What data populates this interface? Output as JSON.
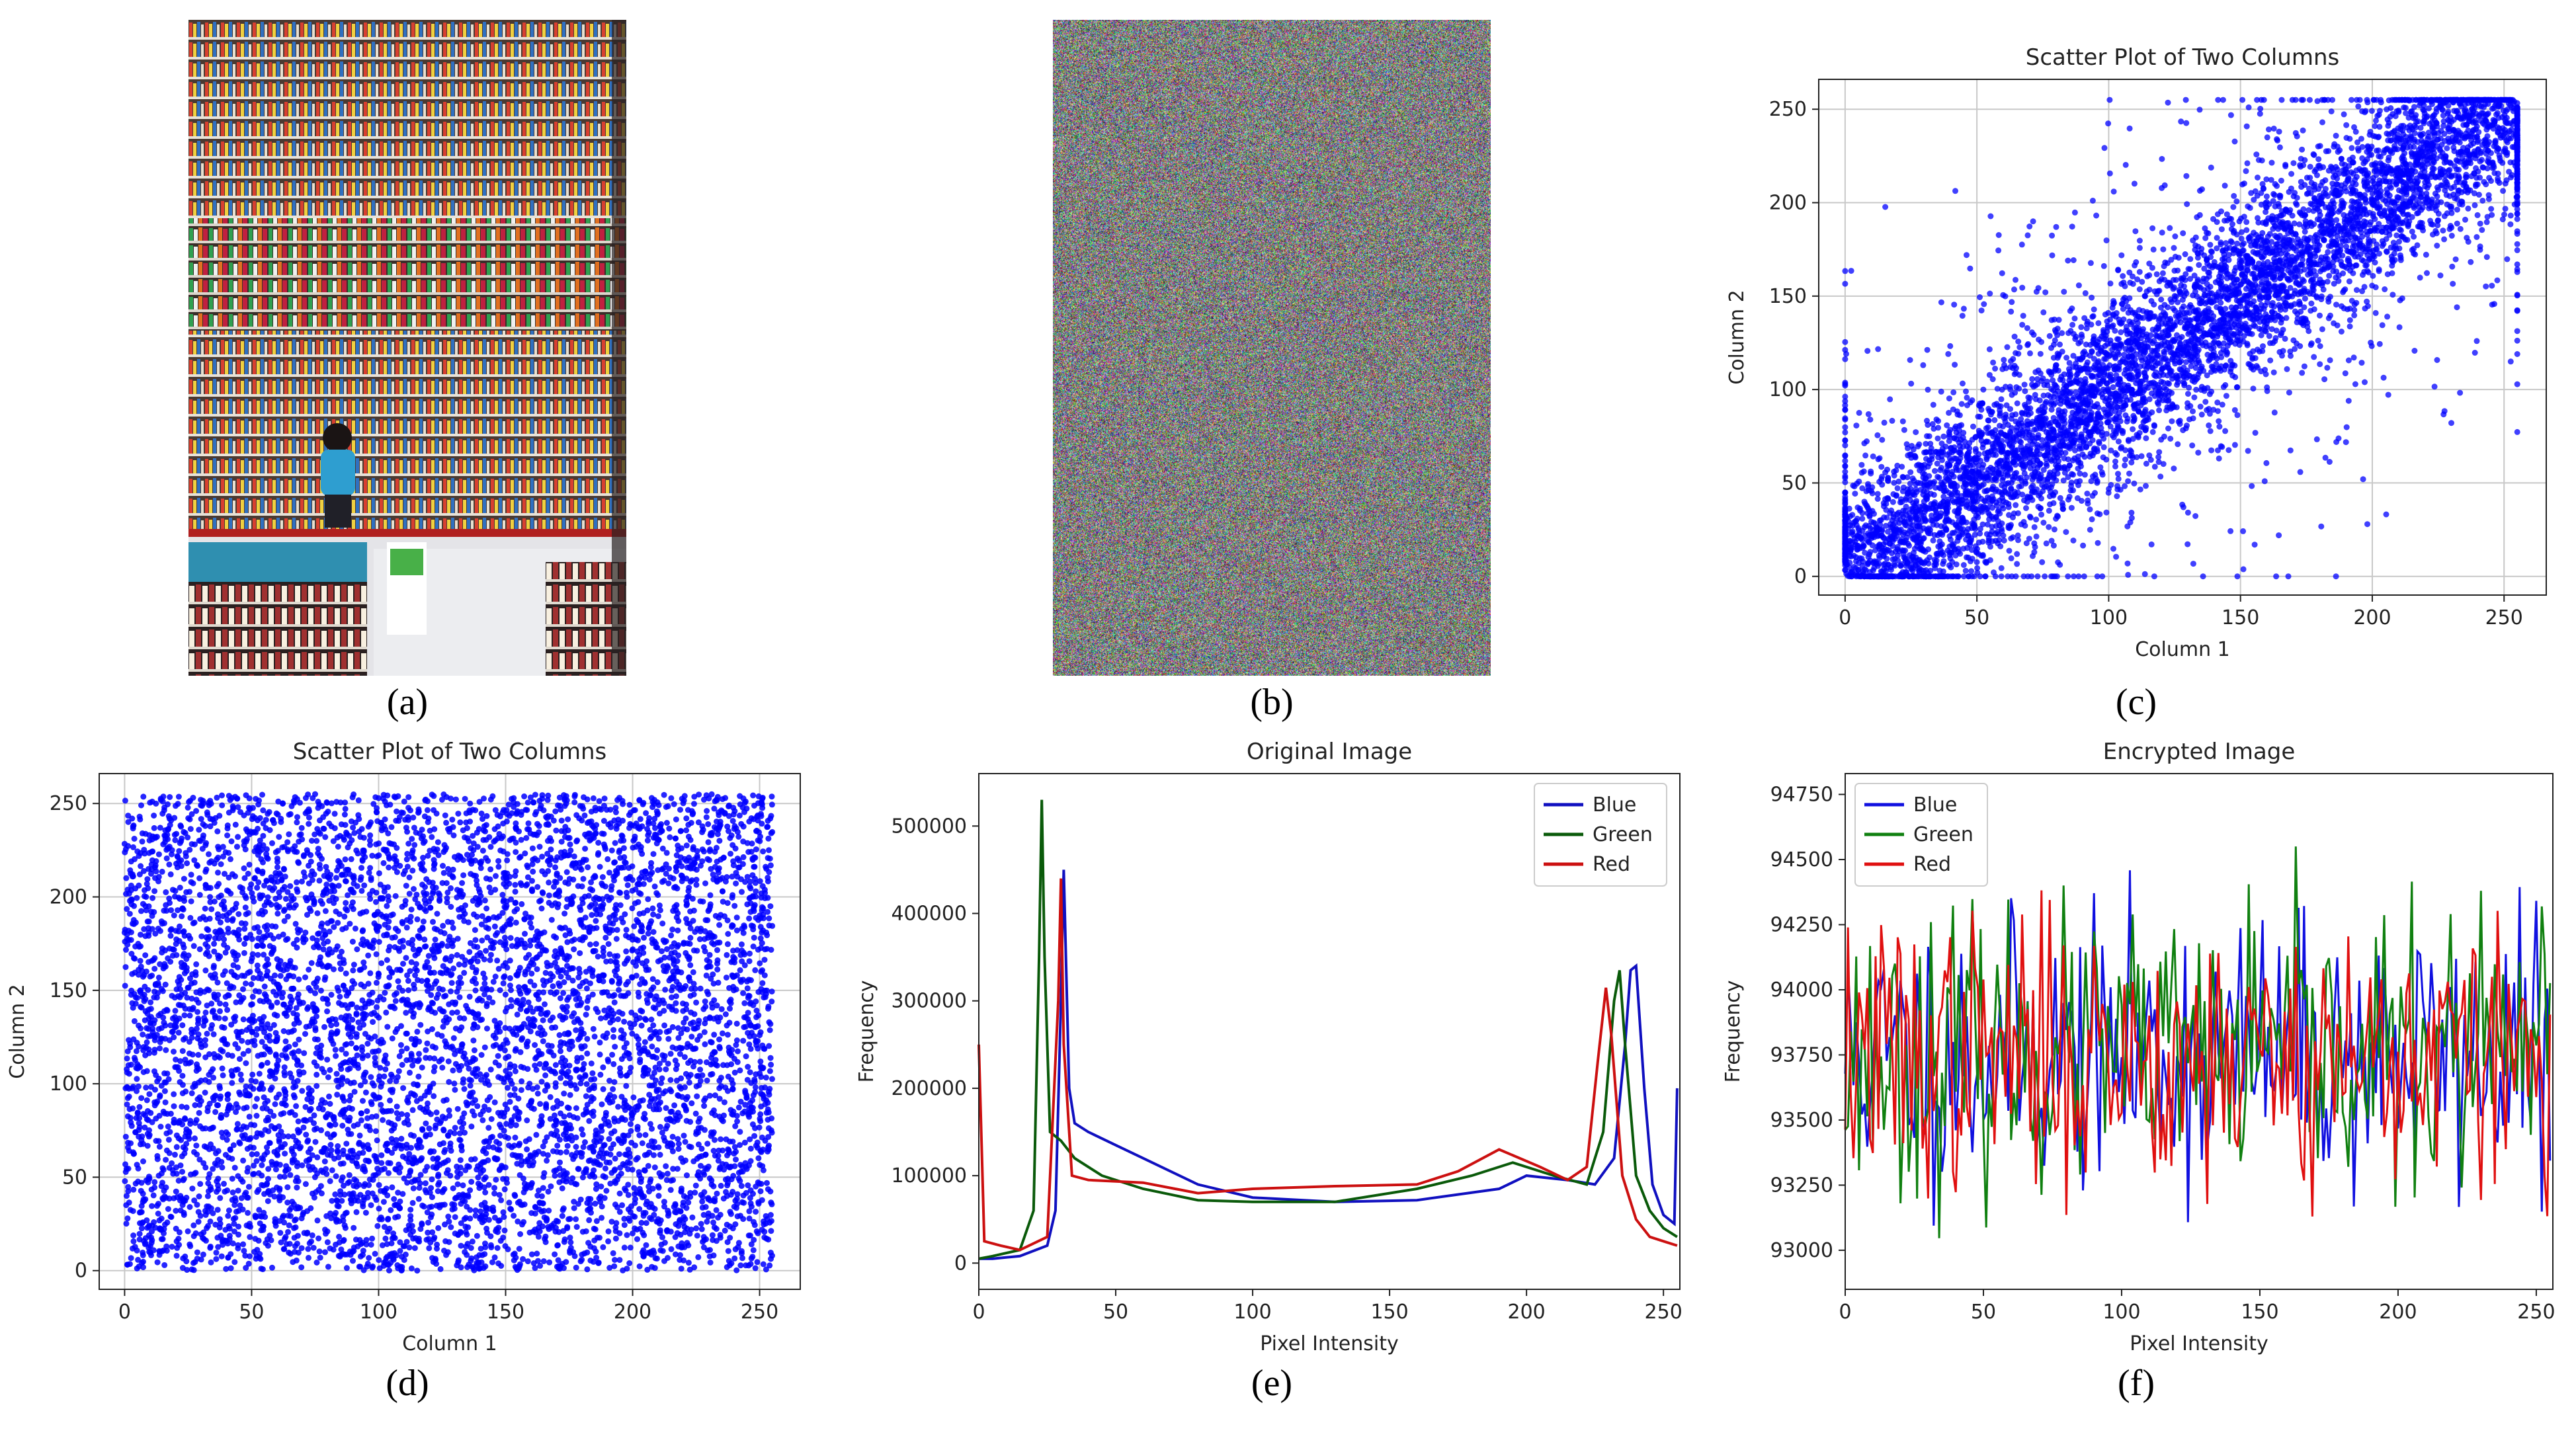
{
  "captions": [
    "(a)",
    "(b)",
    "(c)",
    "(d)",
    "(e)",
    "(f)"
  ],
  "photo": {
    "description_icon": "store-shelves-photo-icon"
  },
  "chart_data": [
    {
      "id": "c",
      "type": "scatter",
      "title": "Scatter Plot of Two Columns",
      "xlabel": "Column 1",
      "ylabel": "Column 2",
      "xlim": [
        -10,
        266
      ],
      "ylim": [
        -10,
        266
      ],
      "xticks": [
        0,
        50,
        100,
        150,
        200,
        250
      ],
      "yticks": [
        0,
        50,
        100,
        150,
        200,
        250
      ],
      "grid": true,
      "color": "#0000ff",
      "pattern": "correlated diagonal cluster from (0,0) to (255,255)"
    },
    {
      "id": "d",
      "type": "scatter",
      "title": "Scatter Plot of Two Columns",
      "xlabel": "Column 1",
      "ylabel": "Column 2",
      "xlim": [
        -10,
        266
      ],
      "ylim": [
        -10,
        266
      ],
      "xticks": [
        0,
        50,
        100,
        150,
        200,
        250
      ],
      "yticks": [
        0,
        50,
        100,
        150,
        200,
        250
      ],
      "grid": true,
      "color": "#0000ff",
      "pattern": "uniform random fill across 0-255 on both axes"
    },
    {
      "id": "e",
      "type": "line",
      "title": "Original Image",
      "xlabel": "Pixel Intensity",
      "ylabel": "Frequency",
      "xlim": [
        0,
        256
      ],
      "ylim": [
        -30000,
        560000
      ],
      "xticks": [
        0,
        50,
        100,
        150,
        200,
        250
      ],
      "yticks": [
        0,
        100000,
        200000,
        300000,
        400000,
        500000
      ],
      "legend": "top-right",
      "series": [
        {
          "name": "Blue",
          "color": "#1010c0",
          "x": [
            0,
            5,
            15,
            25,
            28,
            30,
            31,
            33,
            35,
            40,
            50,
            60,
            80,
            100,
            130,
            160,
            190,
            200,
            215,
            225,
            232,
            236,
            238,
            240,
            243,
            246,
            250,
            254,
            255
          ],
          "y": [
            5000,
            5000,
            8000,
            20000,
            60000,
            300000,
            450000,
            200000,
            160000,
            150000,
            135000,
            120000,
            90000,
            75000,
            70000,
            72000,
            85000,
            100000,
            95000,
            90000,
            120000,
            250000,
            335000,
            340000,
            200000,
            90000,
            55000,
            45000,
            200000
          ]
        },
        {
          "name": "Green",
          "color": "#0a5a0a",
          "x": [
            0,
            5,
            15,
            20,
            22,
            23,
            24,
            26,
            30,
            35,
            45,
            60,
            80,
            100,
            130,
            160,
            180,
            195,
            210,
            222,
            228,
            232,
            234,
            236,
            240,
            245,
            250,
            255
          ],
          "y": [
            5000,
            8000,
            15000,
            60000,
            350000,
            530000,
            350000,
            150000,
            140000,
            120000,
            100000,
            85000,
            72000,
            70000,
            70000,
            85000,
            100000,
            115000,
            100000,
            90000,
            150000,
            300000,
            335000,
            250000,
            100000,
            60000,
            40000,
            30000
          ]
        },
        {
          "name": "Red",
          "color": "#cc1010",
          "x": [
            0,
            2,
            8,
            15,
            25,
            29,
            30,
            31,
            34,
            40,
            60,
            80,
            100,
            130,
            160,
            175,
            190,
            205,
            215,
            222,
            226,
            229,
            231,
            235,
            240,
            245,
            250,
            255
          ],
          "y": [
            250000,
            25000,
            20000,
            15000,
            30000,
            300000,
            440000,
            250000,
            100000,
            95000,
            92000,
            80000,
            85000,
            88000,
            90000,
            105000,
            130000,
            110000,
            95000,
            110000,
            230000,
            315000,
            260000,
            100000,
            50000,
            30000,
            25000,
            20000
          ]
        }
      ]
    },
    {
      "id": "f",
      "type": "line",
      "title": "Encrypted Image",
      "xlabel": "Pixel Intensity",
      "ylabel": "Frequency",
      "xlim": [
        0,
        256
      ],
      "ylim": [
        92850,
        94830
      ],
      "xticks": [
        0,
        50,
        100,
        150,
        200,
        250
      ],
      "yticks": [
        93000,
        93250,
        93500,
        93750,
        94000,
        94250,
        94500,
        94750
      ],
      "legend": "top-left",
      "series": [
        {
          "name": "Blue",
          "color": "#1010e0",
          "seed": 11
        },
        {
          "name": "Green",
          "color": "#108010",
          "seed": 23
        },
        {
          "name": "Red",
          "color": "#e01010",
          "seed": 37
        }
      ]
    }
  ]
}
